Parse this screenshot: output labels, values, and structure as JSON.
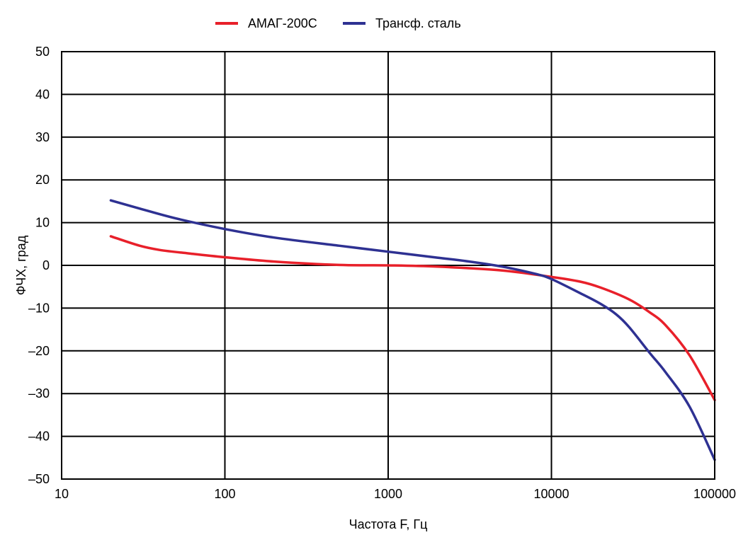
{
  "chart_data": {
    "type": "line",
    "title": "",
    "xlabel": "Частота F, Гц",
    "ylabel": "ФЧХ, град",
    "x_scale": "log",
    "xlim": [
      10,
      100000
    ],
    "ylim": [
      -50,
      50
    ],
    "x_ticks": [
      10,
      100,
      1000,
      10000,
      100000
    ],
    "x_tick_labels": [
      "10",
      "100",
      "1000",
      "10000",
      "100000"
    ],
    "y_ticks": [
      50,
      40,
      30,
      20,
      10,
      0,
      -10,
      -20,
      -30,
      -40,
      -50
    ],
    "y_tick_labels": [
      "50",
      "40",
      "30",
      "20",
      "10",
      "0",
      "–10",
      "–20",
      "–30",
      "–40",
      "–50"
    ],
    "grid": true,
    "legend_position": "top-center",
    "series": [
      {
        "name": "АМАГ-200С",
        "color": "#e8202a",
        "points": [
          [
            20,
            6.8
          ],
          [
            30,
            4.6
          ],
          [
            40,
            3.6
          ],
          [
            60,
            2.8
          ],
          [
            100,
            1.9
          ],
          [
            200,
            0.9
          ],
          [
            500,
            0.1
          ],
          [
            1000,
            0.0
          ],
          [
            2000,
            -0.3
          ],
          [
            5000,
            -1.2
          ],
          [
            10000,
            -2.7
          ],
          [
            15000,
            -3.8
          ],
          [
            20000,
            -5.2
          ],
          [
            30000,
            -8.0
          ],
          [
            40000,
            -11.0
          ],
          [
            50000,
            -14.0
          ],
          [
            70000,
            -21.0
          ],
          [
            100000,
            -31.5
          ]
        ]
      },
      {
        "name": "Трансф. сталь",
        "color": "#2e3192",
        "points": [
          [
            20,
            15.2
          ],
          [
            30,
            13.3
          ],
          [
            50,
            11.0
          ],
          [
            100,
            8.5
          ],
          [
            200,
            6.5
          ],
          [
            500,
            4.6
          ],
          [
            1000,
            3.2
          ],
          [
            2000,
            1.8
          ],
          [
            3000,
            1.0
          ],
          [
            5000,
            -0.3
          ],
          [
            8000,
            -2.0
          ],
          [
            10000,
            -3.2
          ],
          [
            15000,
            -6.5
          ],
          [
            20000,
            -9.0
          ],
          [
            25000,
            -11.5
          ],
          [
            30000,
            -14.5
          ],
          [
            40000,
            -20.5
          ],
          [
            50000,
            -25.0
          ],
          [
            70000,
            -33.0
          ],
          [
            100000,
            -45.5
          ]
        ]
      }
    ]
  }
}
